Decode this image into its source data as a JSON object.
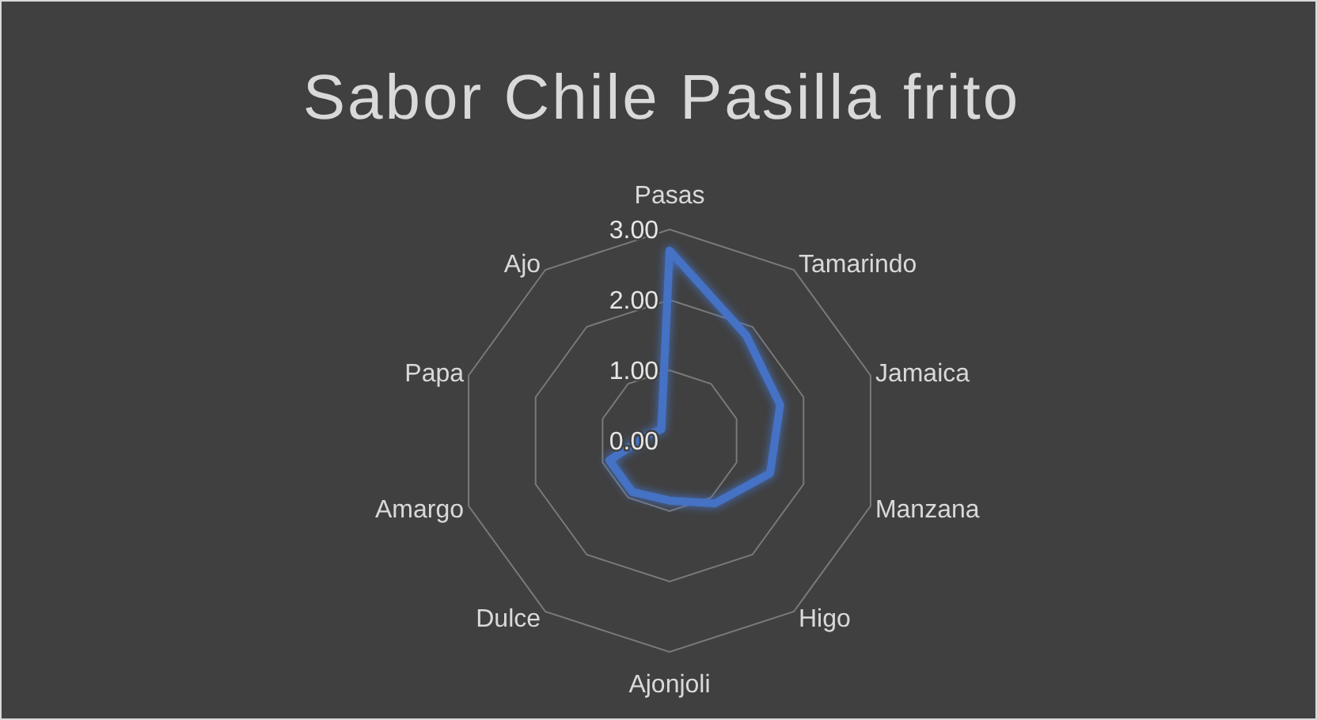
{
  "chart_data": {
    "type": "radar",
    "title": "Sabor Chile Pasilla frito",
    "categories": [
      "Pasas",
      "Tamarindo",
      "Jamaica",
      "Manzana",
      "Higo",
      "Ajonjoli",
      "Dulce",
      "Amargo",
      "Papa",
      "Ajo"
    ],
    "series": [
      {
        "color": "#4472c4",
        "values": [
          2.7,
          1.85,
          1.65,
          1.5,
          1.1,
          0.85,
          0.9,
          0.9,
          0.3,
          0.2
        ]
      }
    ],
    "ylim": [
      0,
      3
    ],
    "yticks": [
      {
        "value": 0,
        "label": "0.00"
      },
      {
        "value": 1,
        "label": "1.00"
      },
      {
        "value": 2,
        "label": "2.00"
      },
      {
        "value": 3,
        "label": "3.00"
      }
    ],
    "grid": true
  }
}
